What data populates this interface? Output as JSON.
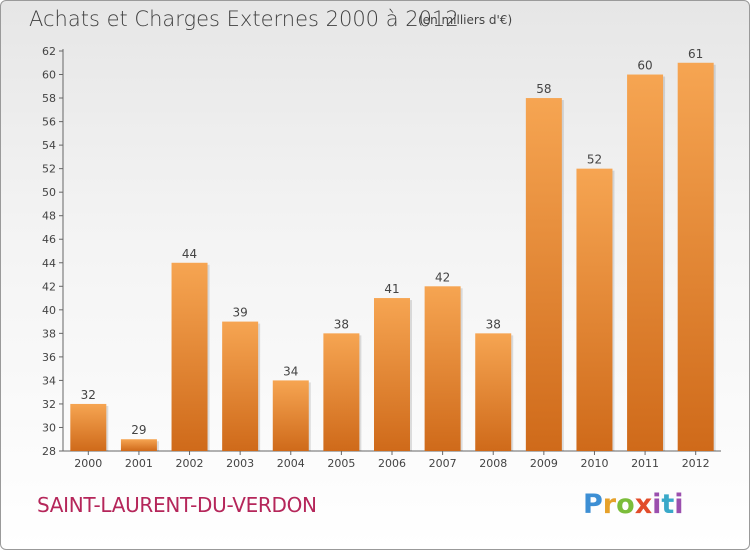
{
  "title": "Achats et Charges Externes 2000 à 2012",
  "subtitle": "(en milliers d'€)",
  "place": "SAINT-LAURENT-DU-VERDON",
  "logo": {
    "text": "Proxiti",
    "p": "P",
    "r": "r",
    "o": "o",
    "x": "x",
    "i": "i",
    "t": "t",
    "i2": "i"
  },
  "colors": {
    "bar_top": "#f6a552",
    "bar_bottom": "#cf6a1a",
    "place": "#b5265a"
  },
  "chart_data": {
    "type": "bar",
    "categories": [
      "2000",
      "2001",
      "2002",
      "2003",
      "2004",
      "2005",
      "2006",
      "2007",
      "2008",
      "2009",
      "2010",
      "2011",
      "2012"
    ],
    "values": [
      32,
      29,
      44,
      39,
      34,
      38,
      41,
      42,
      38,
      58,
      52,
      60,
      61
    ],
    "title": "Achats et Charges Externes 2000 à 2012",
    "subtitle": "(en milliers d'€)",
    "ylim": [
      28,
      62
    ],
    "yticks": [
      28,
      30,
      32,
      34,
      36,
      38,
      40,
      42,
      44,
      46,
      48,
      50,
      52,
      54,
      56,
      58,
      60,
      62
    ],
    "grid": false
  }
}
